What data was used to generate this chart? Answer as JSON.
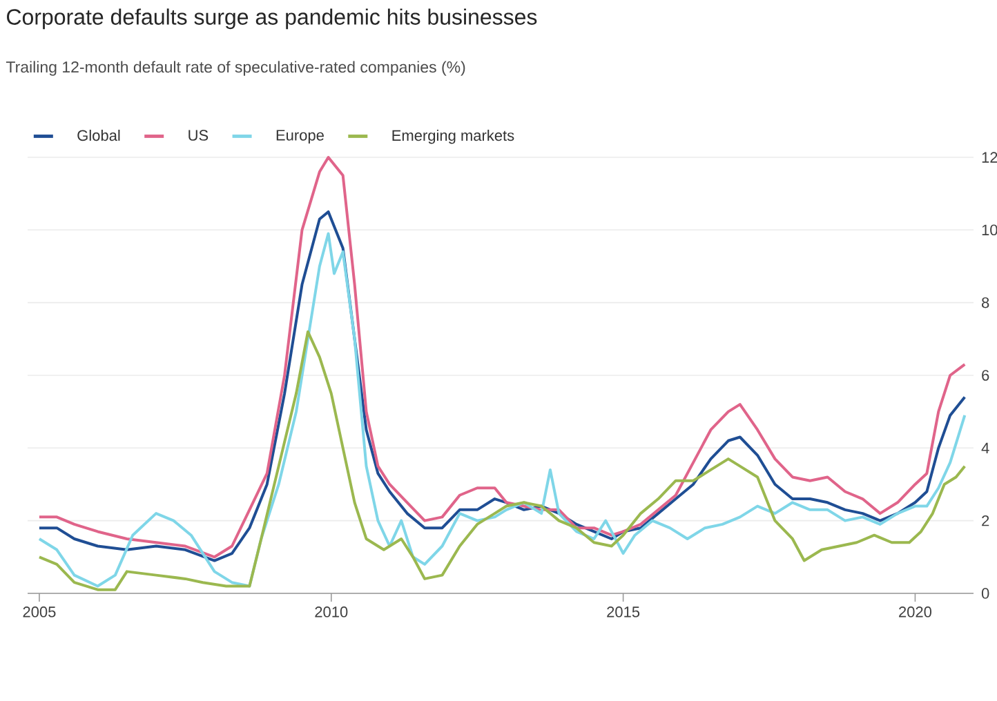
{
  "chart_data": {
    "type": "line",
    "title": "Corporate defaults surge as pandemic hits businesses",
    "subtitle": "Trailing 12-month default rate of speculative-rated companies (%)",
    "xlim": [
      2004.8,
      2021.0
    ],
    "xticks": [
      2005,
      2010,
      2015,
      2020
    ],
    "ylim": [
      0,
      12
    ],
    "yticks": [
      0,
      2,
      4,
      6,
      8,
      10,
      12
    ],
    "grid": "y",
    "legend": "top left",
    "line_style": "solid",
    "marker": "none",
    "series": [
      {
        "name": "Global",
        "color": "#1f4e94",
        "x": [
          2005.0,
          2005.3,
          2005.6,
          2006.0,
          2006.5,
          2007.0,
          2007.5,
          2008.0,
          2008.3,
          2008.6,
          2008.9,
          2009.2,
          2009.5,
          2009.8,
          2009.95,
          2010.2,
          2010.4,
          2010.6,
          2010.8,
          2011.0,
          2011.3,
          2011.6,
          2011.9,
          2012.2,
          2012.5,
          2012.8,
          2013.0,
          2013.3,
          2013.6,
          2013.9,
          2014.2,
          2014.5,
          2014.8,
          2015.0,
          2015.3,
          2015.6,
          2015.9,
          2016.2,
          2016.5,
          2016.8,
          2017.0,
          2017.3,
          2017.6,
          2017.9,
          2018.2,
          2018.5,
          2018.8,
          2019.1,
          2019.4,
          2019.7,
          2020.0,
          2020.2,
          2020.4,
          2020.6,
          2020.85
        ],
        "values": [
          1.8,
          1.8,
          1.5,
          1.3,
          1.2,
          1.3,
          1.2,
          0.9,
          1.1,
          1.8,
          3.0,
          5.5,
          8.5,
          10.3,
          10.5,
          9.5,
          7.0,
          4.5,
          3.3,
          2.8,
          2.2,
          1.8,
          1.8,
          2.3,
          2.3,
          2.6,
          2.5,
          2.3,
          2.4,
          2.2,
          1.9,
          1.7,
          1.5,
          1.7,
          1.8,
          2.2,
          2.6,
          3.0,
          3.7,
          4.2,
          4.3,
          3.8,
          3.0,
          2.6,
          2.6,
          2.5,
          2.3,
          2.2,
          2.0,
          2.2,
          2.5,
          2.8,
          4.0,
          4.9,
          5.4
        ]
      },
      {
        "name": "US",
        "color": "#e0648a",
        "x": [
          2005.0,
          2005.3,
          2005.6,
          2006.0,
          2006.5,
          2007.0,
          2007.5,
          2008.0,
          2008.3,
          2008.6,
          2008.9,
          2009.2,
          2009.5,
          2009.8,
          2009.95,
          2010.2,
          2010.4,
          2010.6,
          2010.8,
          2011.0,
          2011.3,
          2011.6,
          2011.9,
          2012.2,
          2012.5,
          2012.8,
          2013.0,
          2013.3,
          2013.6,
          2013.9,
          2014.2,
          2014.5,
          2014.8,
          2015.0,
          2015.3,
          2015.6,
          2015.9,
          2016.2,
          2016.5,
          2016.8,
          2017.0,
          2017.3,
          2017.6,
          2017.9,
          2018.2,
          2018.5,
          2018.8,
          2019.1,
          2019.4,
          2019.7,
          2020.0,
          2020.2,
          2020.4,
          2020.6,
          2020.85
        ],
        "values": [
          2.1,
          2.1,
          1.9,
          1.7,
          1.5,
          1.4,
          1.3,
          1.0,
          1.3,
          2.3,
          3.3,
          6.0,
          10.0,
          11.6,
          12.0,
          11.5,
          8.5,
          5.0,
          3.5,
          3.0,
          2.5,
          2.0,
          2.1,
          2.7,
          2.9,
          2.9,
          2.5,
          2.4,
          2.3,
          2.3,
          1.8,
          1.8,
          1.6,
          1.7,
          1.9,
          2.3,
          2.7,
          3.6,
          4.5,
          5.0,
          5.2,
          4.5,
          3.7,
          3.2,
          3.1,
          3.2,
          2.8,
          2.6,
          2.2,
          2.5,
          3.0,
          3.3,
          5.0,
          6.0,
          6.3
        ]
      },
      {
        "name": "Europe",
        "color": "#7fd6e8",
        "x": [
          2005.0,
          2005.3,
          2005.6,
          2006.0,
          2006.3,
          2006.6,
          2007.0,
          2007.3,
          2007.6,
          2008.0,
          2008.3,
          2008.6,
          2008.8,
          2009.1,
          2009.4,
          2009.6,
          2009.8,
          2009.95,
          2010.05,
          2010.2,
          2010.4,
          2010.6,
          2010.8,
          2011.0,
          2011.2,
          2011.4,
          2011.6,
          2011.9,
          2012.2,
          2012.5,
          2012.8,
          2013.0,
          2013.3,
          2013.6,
          2013.75,
          2013.9,
          2014.2,
          2014.5,
          2014.7,
          2015.0,
          2015.2,
          2015.5,
          2015.8,
          2016.1,
          2016.4,
          2016.7,
          2017.0,
          2017.3,
          2017.6,
          2017.9,
          2018.2,
          2018.5,
          2018.8,
          2019.1,
          2019.4,
          2019.7,
          2020.0,
          2020.2,
          2020.4,
          2020.6,
          2020.85
        ],
        "values": [
          1.5,
          1.2,
          0.5,
          0.2,
          0.5,
          1.6,
          2.2,
          2.0,
          1.6,
          0.6,
          0.3,
          0.2,
          1.5,
          3.0,
          5.0,
          7.0,
          9.0,
          9.9,
          8.8,
          9.4,
          7.0,
          3.5,
          2.0,
          1.3,
          2.0,
          1.0,
          0.8,
          1.3,
          2.2,
          2.0,
          2.1,
          2.3,
          2.5,
          2.2,
          3.4,
          2.2,
          1.7,
          1.5,
          2.0,
          1.1,
          1.6,
          2.0,
          1.8,
          1.5,
          1.8,
          1.9,
          2.1,
          2.4,
          2.2,
          2.5,
          2.3,
          2.3,
          2.0,
          2.1,
          1.9,
          2.2,
          2.4,
          2.4,
          2.9,
          3.6,
          4.9
        ]
      },
      {
        "name": "Emerging markets",
        "color": "#9bb84f",
        "x": [
          2005.0,
          2005.3,
          2005.6,
          2006.0,
          2006.3,
          2006.5,
          2007.0,
          2007.5,
          2007.8,
          2008.2,
          2008.6,
          2008.8,
          2009.1,
          2009.4,
          2009.6,
          2009.8,
          2010.0,
          2010.2,
          2010.4,
          2010.6,
          2010.9,
          2011.2,
          2011.4,
          2011.6,
          2011.9,
          2012.2,
          2012.5,
          2012.8,
          2013.0,
          2013.3,
          2013.6,
          2013.9,
          2014.2,
          2014.5,
          2014.8,
          2015.0,
          2015.3,
          2015.6,
          2015.9,
          2016.2,
          2016.5,
          2016.8,
          2017.0,
          2017.3,
          2017.6,
          2017.9,
          2018.1,
          2018.4,
          2018.7,
          2019.0,
          2019.3,
          2019.6,
          2019.9,
          2020.1,
          2020.3,
          2020.5,
          2020.7,
          2020.85
        ],
        "values": [
          1.0,
          0.8,
          0.3,
          0.1,
          0.1,
          0.6,
          0.5,
          0.4,
          0.3,
          0.2,
          0.2,
          1.5,
          3.5,
          5.5,
          7.2,
          6.5,
          5.5,
          4.0,
          2.5,
          1.5,
          1.2,
          1.5,
          1.0,
          0.4,
          0.5,
          1.3,
          1.9,
          2.2,
          2.4,
          2.5,
          2.4,
          2.0,
          1.8,
          1.4,
          1.3,
          1.6,
          2.2,
          2.6,
          3.1,
          3.1,
          3.4,
          3.7,
          3.5,
          3.2,
          2.0,
          1.5,
          0.9,
          1.2,
          1.3,
          1.4,
          1.6,
          1.4,
          1.4,
          1.7,
          2.2,
          3.0,
          3.2,
          3.5
        ]
      }
    ]
  }
}
